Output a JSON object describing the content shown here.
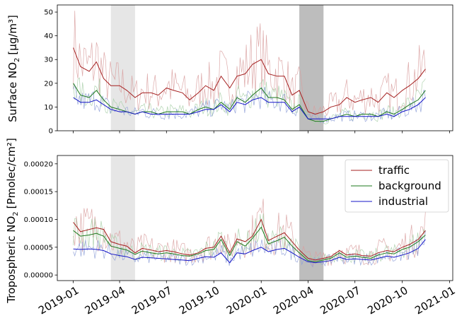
{
  "chart_data": [
    {
      "type": "line",
      "ylabel_main": "Surface NO",
      "ylabel_sub": "2",
      "ylabel_units": "[µg/m³]",
      "ylim": [
        0,
        53
      ],
      "yticks": [
        0,
        10,
        20,
        30,
        40,
        50
      ],
      "ytick_labels": [
        "0",
        "10",
        "20",
        "30",
        "40",
        "50"
      ],
      "shaded_periods": [
        {
          "start": "2019-03-15",
          "end": "2019-05-01",
          "color": "#e6e6e6"
        },
        {
          "start": "2020-03-15",
          "end": "2020-05-01",
          "color": "#bdbdbd"
        }
      ],
      "series": [
        {
          "name": "traffic",
          "color": "#a52020",
          "raw_color": "#d9a0a0",
          "x": [
            "2019-01-01",
            "2019-01-15",
            "2019-02-01",
            "2019-02-15",
            "2019-03-01",
            "2019-03-15",
            "2019-04-01",
            "2019-04-15",
            "2019-05-01",
            "2019-05-15",
            "2019-06-01",
            "2019-06-15",
            "2019-07-01",
            "2019-07-15",
            "2019-08-01",
            "2019-08-15",
            "2019-09-01",
            "2019-09-15",
            "2019-10-01",
            "2019-10-15",
            "2019-11-01",
            "2019-11-15",
            "2019-12-01",
            "2019-12-15",
            "2020-01-01",
            "2020-01-15",
            "2020-02-01",
            "2020-02-15",
            "2020-03-01",
            "2020-03-15",
            "2020-04-01",
            "2020-04-15",
            "2020-05-01",
            "2020-05-15",
            "2020-06-01",
            "2020-06-15",
            "2020-07-01",
            "2020-07-15",
            "2020-08-01",
            "2020-08-15",
            "2020-09-01",
            "2020-09-15",
            "2020-10-01",
            "2020-10-15",
            "2020-11-01",
            "2020-11-15"
          ],
          "values": [
            35,
            27,
            25,
            29,
            22,
            19,
            19,
            17,
            14,
            16,
            16,
            15,
            18,
            17,
            16,
            13,
            16,
            19,
            17,
            23,
            18,
            23,
            24,
            28,
            30,
            24,
            23,
            23,
            15,
            17,
            8,
            7,
            8,
            10,
            11,
            14,
            12,
            13,
            14,
            12,
            16,
            14,
            17,
            19,
            22,
            26
          ]
        },
        {
          "name": "background",
          "color": "#1e7a1e",
          "raw_color": "#a8cfa8",
          "x": [
            "2019-01-01",
            "2019-01-15",
            "2019-02-01",
            "2019-02-15",
            "2019-03-01",
            "2019-03-15",
            "2019-04-01",
            "2019-04-15",
            "2019-05-01",
            "2019-05-15",
            "2019-06-01",
            "2019-06-15",
            "2019-07-01",
            "2019-07-15",
            "2019-08-01",
            "2019-08-15",
            "2019-09-01",
            "2019-09-15",
            "2019-10-01",
            "2019-10-15",
            "2019-11-01",
            "2019-11-15",
            "2019-12-01",
            "2019-12-15",
            "2020-01-01",
            "2020-01-15",
            "2020-02-01",
            "2020-02-15",
            "2020-03-01",
            "2020-03-15",
            "2020-04-01",
            "2020-04-15",
            "2020-05-01",
            "2020-05-15",
            "2020-06-01",
            "2020-06-15",
            "2020-07-01",
            "2020-07-15",
            "2020-08-01",
            "2020-08-15",
            "2020-09-01",
            "2020-09-15",
            "2020-10-01",
            "2020-10-15",
            "2020-11-01",
            "2020-11-15"
          ],
          "values": [
            20,
            15,
            14,
            17,
            13,
            10,
            9,
            8,
            7,
            8,
            8,
            7,
            8,
            8,
            8,
            7,
            9,
            10,
            9,
            12,
            9,
            14,
            12,
            15,
            18,
            14,
            14,
            13,
            9,
            11,
            5,
            4,
            4,
            5,
            6,
            7,
            6,
            7,
            7,
            6,
            8,
            7,
            9,
            11,
            13,
            17
          ]
        },
        {
          "name": "industrial",
          "color": "#1515c8",
          "raw_color": "#8fa0d8",
          "x": [
            "2019-01-01",
            "2019-01-15",
            "2019-02-01",
            "2019-02-15",
            "2019-03-01",
            "2019-03-15",
            "2019-04-01",
            "2019-04-15",
            "2019-05-01",
            "2019-05-15",
            "2019-06-01",
            "2019-06-15",
            "2019-07-01",
            "2019-07-15",
            "2019-08-01",
            "2019-08-15",
            "2019-09-01",
            "2019-09-15",
            "2019-10-01",
            "2019-10-15",
            "2019-11-01",
            "2019-11-15",
            "2019-12-01",
            "2019-12-15",
            "2020-01-01",
            "2020-01-15",
            "2020-02-01",
            "2020-02-15",
            "2020-03-01",
            "2020-03-15",
            "2020-04-01",
            "2020-04-15",
            "2020-05-01",
            "2020-05-15",
            "2020-06-01",
            "2020-06-15",
            "2020-07-01",
            "2020-07-15",
            "2020-08-01",
            "2020-08-15",
            "2020-09-01",
            "2020-09-15",
            "2020-10-01",
            "2020-10-15",
            "2020-11-01",
            "2020-11-15"
          ],
          "values": [
            14,
            12,
            12,
            13,
            11,
            9,
            8,
            8,
            7,
            8,
            7,
            7,
            7,
            7,
            7,
            7,
            8,
            9,
            9,
            11,
            8,
            12,
            11,
            13,
            14,
            12,
            12,
            12,
            8,
            10,
            5,
            5,
            5,
            5,
            6,
            6,
            6,
            6,
            6,
            6,
            7,
            6,
            8,
            9,
            11,
            14
          ]
        }
      ]
    },
    {
      "type": "line",
      "ylabel_main": "Tropospheric NO",
      "ylabel_sub": "2",
      "ylabel_units": "[Pmolec/cm²]",
      "ylim": [
        -1e-05,
        0.000215
      ],
      "yticks": [
        0,
        5e-05,
        0.0001,
        0.00015,
        0.0002
      ],
      "ytick_labels": [
        "0.00000",
        "0.00005",
        "0.00010",
        "0.00015",
        "0.00020"
      ],
      "legend_position": "upper-right",
      "shaded_periods": [
        {
          "start": "2019-03-15",
          "end": "2019-05-01",
          "color": "#e6e6e6"
        },
        {
          "start": "2020-03-15",
          "end": "2020-05-01",
          "color": "#bdbdbd"
        }
      ],
      "series": [
        {
          "name": "traffic",
          "color": "#a52020",
          "raw_color": "#d9a0a0",
          "x": [
            "2019-01-01",
            "2019-01-15",
            "2019-02-01",
            "2019-02-15",
            "2019-03-01",
            "2019-03-15",
            "2019-04-01",
            "2019-04-15",
            "2019-05-01",
            "2019-05-15",
            "2019-06-01",
            "2019-06-15",
            "2019-07-01",
            "2019-07-15",
            "2019-08-01",
            "2019-08-15",
            "2019-09-01",
            "2019-09-15",
            "2019-10-01",
            "2019-10-15",
            "2019-11-01",
            "2019-11-15",
            "2019-12-01",
            "2019-12-15",
            "2020-01-01",
            "2020-01-15",
            "2020-02-01",
            "2020-02-15",
            "2020-03-01",
            "2020-03-15",
            "2020-04-01",
            "2020-04-15",
            "2020-05-01",
            "2020-05-15",
            "2020-06-01",
            "2020-06-15",
            "2020-07-01",
            "2020-07-15",
            "2020-08-01",
            "2020-08-15",
            "2020-09-01",
            "2020-09-15",
            "2020-10-01",
            "2020-10-15",
            "2020-11-01",
            "2020-11-15"
          ],
          "values": [
            9.5e-05,
            7.8e-05,
            8.2e-05,
            8.5e-05,
            8.2e-05,
            6e-05,
            5.5e-05,
            5.2e-05,
            4e-05,
            4.8e-05,
            4.5e-05,
            4.2e-05,
            4.4e-05,
            4.2e-05,
            3.8e-05,
            3.6e-05,
            4e-05,
            4.8e-05,
            5e-05,
            7e-05,
            4e-05,
            6.5e-05,
            6e-05,
            7e-05,
            0.0001,
            6.2e-05,
            7e-05,
            7.6e-05,
            6e-05,
            4.5e-05,
            3e-05,
            2.7e-05,
            3e-05,
            3.3e-05,
            4.4e-05,
            3.6e-05,
            3.8e-05,
            3.5e-05,
            3.4e-05,
            4e-05,
            4.4e-05,
            4.2e-05,
            5e-05,
            5.5e-05,
            6.4e-05,
            8e-05
          ]
        },
        {
          "name": "background",
          "color": "#1e7a1e",
          "raw_color": "#a8cfa8",
          "x": [
            "2019-01-01",
            "2019-01-15",
            "2019-02-01",
            "2019-02-15",
            "2019-03-01",
            "2019-03-15",
            "2019-04-01",
            "2019-04-15",
            "2019-05-01",
            "2019-05-15",
            "2019-06-01",
            "2019-06-15",
            "2019-07-01",
            "2019-07-15",
            "2019-08-01",
            "2019-08-15",
            "2019-09-01",
            "2019-09-15",
            "2019-10-01",
            "2019-10-15",
            "2019-11-01",
            "2019-11-15",
            "2019-12-01",
            "2019-12-15",
            "2020-01-01",
            "2020-01-15",
            "2020-02-01",
            "2020-02-15",
            "2020-03-01",
            "2020-03-15",
            "2020-04-01",
            "2020-04-15",
            "2020-05-01",
            "2020-05-15",
            "2020-06-01",
            "2020-06-15",
            "2020-07-01",
            "2020-07-15",
            "2020-08-01",
            "2020-08-15",
            "2020-09-01",
            "2020-09-15",
            "2020-10-01",
            "2020-10-15",
            "2020-11-01",
            "2020-11-15"
          ],
          "values": [
            8e-05,
            7e-05,
            7.2e-05,
            7.5e-05,
            7e-05,
            5.2e-05,
            4.8e-05,
            4.5e-05,
            3.7e-05,
            4.3e-05,
            4e-05,
            3.8e-05,
            4e-05,
            3.8e-05,
            3.5e-05,
            3.4e-05,
            3.8e-05,
            4.4e-05,
            4.6e-05,
            6.4e-05,
            3.5e-05,
            6e-05,
            5.2e-05,
            6.6e-05,
            8.6e-05,
            5.6e-05,
            6.2e-05,
            6.8e-05,
            5.2e-05,
            4e-05,
            2.6e-05,
            2.4e-05,
            2.7e-05,
            3e-05,
            4e-05,
            3.2e-05,
            3.4e-05,
            3.2e-05,
            3e-05,
            3.6e-05,
            4e-05,
            3.8e-05,
            4.6e-05,
            5e-05,
            6e-05,
            7.2e-05
          ]
        },
        {
          "name": "industrial",
          "color": "#1515c8",
          "raw_color": "#8fa0d8",
          "x": [
            "2019-01-01",
            "2019-01-15",
            "2019-02-01",
            "2019-02-15",
            "2019-03-01",
            "2019-03-15",
            "2019-04-01",
            "2019-04-15",
            "2019-05-01",
            "2019-05-15",
            "2019-06-01",
            "2019-06-15",
            "2019-07-01",
            "2019-07-15",
            "2019-08-01",
            "2019-08-15",
            "2019-09-01",
            "2019-09-15",
            "2019-10-01",
            "2019-10-15",
            "2019-11-01",
            "2019-11-15",
            "2019-12-01",
            "2019-12-15",
            "2020-01-01",
            "2020-01-15",
            "2020-02-01",
            "2020-02-15",
            "2020-03-01",
            "2020-03-15",
            "2020-04-01",
            "2020-04-15",
            "2020-05-01",
            "2020-05-15",
            "2020-06-01",
            "2020-06-15",
            "2020-07-01",
            "2020-07-15",
            "2020-08-01",
            "2020-08-15",
            "2020-09-01",
            "2020-09-15",
            "2020-10-01",
            "2020-10-15",
            "2020-11-01",
            "2020-11-15"
          ],
          "values": [
            4.7e-05,
            4.6e-05,
            4.7e-05,
            4.6e-05,
            4.4e-05,
            3.8e-05,
            3.5e-05,
            3.3e-05,
            2.8e-05,
            3.2e-05,
            3.1e-05,
            3e-05,
            2.9e-05,
            2.8e-05,
            2.7e-05,
            2.6e-05,
            3e-05,
            3.3e-05,
            3.2e-05,
            4e-05,
            2.2e-05,
            4e-05,
            3.8e-05,
            4.4e-05,
            5e-05,
            4.2e-05,
            4.6e-05,
            4.8e-05,
            4e-05,
            3.2e-05,
            2.4e-05,
            2.2e-05,
            2.4e-05,
            2.6e-05,
            3.2e-05,
            2.8e-05,
            2.9e-05,
            2.8e-05,
            2.7e-05,
            3e-05,
            3.4e-05,
            3.2e-05,
            3.6e-05,
            4e-05,
            4.8e-05,
            6.4e-05
          ]
        }
      ]
    }
  ],
  "xaxis": {
    "xlim": [
      "2018-12-01",
      "2021-01-07"
    ],
    "ticks": [
      "2019-01-01",
      "2019-04-01",
      "2019-07-01",
      "2019-10-01",
      "2020-01-01",
      "2020-04-01",
      "2020-07-01",
      "2020-10-01",
      "2021-01-01"
    ],
    "tick_labels": [
      "2019-01",
      "2019-04",
      "2019-07",
      "2019-10",
      "2020-01",
      "2020-04",
      "2020-07",
      "2020-10",
      "2021-01"
    ]
  },
  "legend": {
    "entries": [
      "traffic",
      "background",
      "industrial"
    ]
  }
}
